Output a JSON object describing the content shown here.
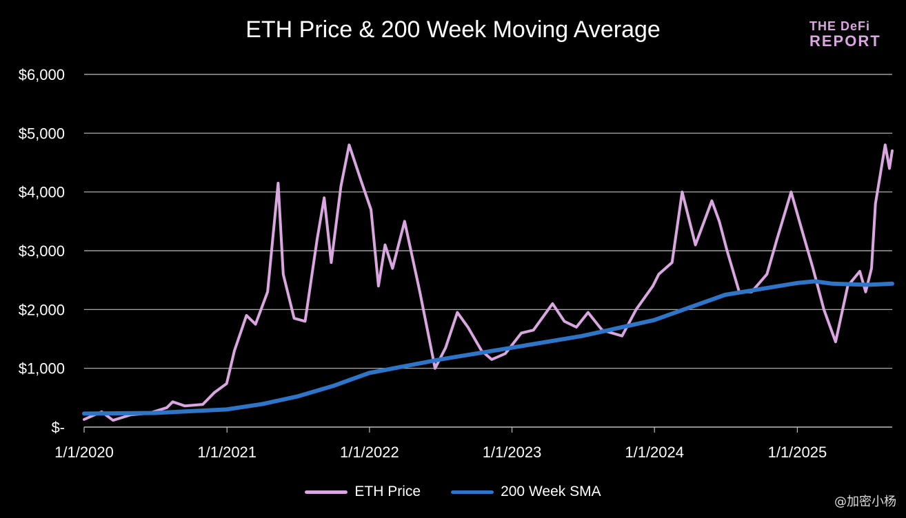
{
  "chart_data": {
    "type": "line",
    "title": "ETH Price & 200 Week Moving Average",
    "x_tick_labels": [
      "1/1/2020",
      "1/1/2021",
      "1/1/2022",
      "1/1/2023",
      "1/1/2024",
      "1/1/2025"
    ],
    "y_tick_labels": [
      "$-",
      "$1,000",
      "$2,000",
      "$3,000",
      "$4,000",
      "$5,000",
      "$6,000"
    ],
    "xlim": [
      "2020-01-01",
      "2025-09-01"
    ],
    "ylim": [
      0,
      6000
    ],
    "grid": "horizontal",
    "legend_position": "bottom",
    "series": [
      {
        "name": "ETH Price",
        "color": "#d9a6e0",
        "points": [
          [
            "2020-01-01",
            130
          ],
          [
            "2020-02-15",
            260
          ],
          [
            "2020-03-15",
            115
          ],
          [
            "2020-04-30",
            210
          ],
          [
            "2020-06-15",
            235
          ],
          [
            "2020-07-31",
            330
          ],
          [
            "2020-08-15",
            430
          ],
          [
            "2020-09-15",
            360
          ],
          [
            "2020-10-31",
            385
          ],
          [
            "2020-11-30",
            590
          ],
          [
            "2020-12-31",
            740
          ],
          [
            "2021-01-20",
            1300
          ],
          [
            "2021-02-20",
            1900
          ],
          [
            "2021-03-15",
            1750
          ],
          [
            "2021-04-15",
            2300
          ],
          [
            "2021-05-12",
            4150
          ],
          [
            "2021-05-25",
            2600
          ],
          [
            "2021-06-22",
            1850
          ],
          [
            "2021-07-20",
            1800
          ],
          [
            "2021-08-20",
            3200
          ],
          [
            "2021-09-07",
            3900
          ],
          [
            "2021-09-25",
            2800
          ],
          [
            "2021-10-20",
            4100
          ],
          [
            "2021-11-10",
            4800
          ],
          [
            "2021-12-10",
            4200
          ],
          [
            "2022-01-05",
            3700
          ],
          [
            "2022-01-24",
            2400
          ],
          [
            "2022-02-10",
            3100
          ],
          [
            "2022-03-01",
            2700
          ],
          [
            "2022-04-01",
            3500
          ],
          [
            "2022-05-10",
            2300
          ],
          [
            "2022-06-18",
            1000
          ],
          [
            "2022-07-15",
            1350
          ],
          [
            "2022-08-14",
            1950
          ],
          [
            "2022-09-10",
            1700
          ],
          [
            "2022-10-15",
            1300
          ],
          [
            "2022-11-10",
            1150
          ],
          [
            "2022-12-15",
            1250
          ],
          [
            "2023-01-25",
            1600
          ],
          [
            "2023-02-25",
            1650
          ],
          [
            "2023-04-15",
            2100
          ],
          [
            "2023-05-15",
            1800
          ],
          [
            "2023-06-15",
            1700
          ],
          [
            "2023-07-15",
            1950
          ],
          [
            "2023-08-20",
            1650
          ],
          [
            "2023-10-10",
            1550
          ],
          [
            "2023-11-15",
            2000
          ],
          [
            "2023-12-28",
            2400
          ],
          [
            "2024-01-12",
            2600
          ],
          [
            "2024-02-15",
            2800
          ],
          [
            "2024-03-12",
            4000
          ],
          [
            "2024-04-15",
            3100
          ],
          [
            "2024-05-27",
            3850
          ],
          [
            "2024-06-15",
            3500
          ],
          [
            "2024-07-05",
            3000
          ],
          [
            "2024-08-05",
            2300
          ],
          [
            "2024-09-06",
            2300
          ],
          [
            "2024-10-15",
            2600
          ],
          [
            "2024-11-10",
            3200
          ],
          [
            "2024-12-16",
            4000
          ],
          [
            "2025-01-15",
            3300
          ],
          [
            "2025-02-10",
            2700
          ],
          [
            "2025-03-10",
            2000
          ],
          [
            "2025-04-09",
            1450
          ],
          [
            "2025-05-10",
            2400
          ],
          [
            "2025-06-10",
            2650
          ],
          [
            "2025-06-25",
            2300
          ],
          [
            "2025-07-10",
            2700
          ],
          [
            "2025-07-20",
            3800
          ],
          [
            "2025-08-14",
            4800
          ],
          [
            "2025-08-25",
            4400
          ],
          [
            "2025-09-01",
            4700
          ]
        ]
      },
      {
        "name": "200 Week SMA",
        "color": "#2e75c8",
        "points": [
          [
            "2020-01-01",
            230
          ],
          [
            "2020-06-30",
            240
          ],
          [
            "2020-12-31",
            300
          ],
          [
            "2021-03-31",
            390
          ],
          [
            "2021-06-30",
            520
          ],
          [
            "2021-09-30",
            700
          ],
          [
            "2021-12-31",
            920
          ],
          [
            "2022-06-30",
            1150
          ],
          [
            "2022-12-31",
            1350
          ],
          [
            "2023-06-30",
            1550
          ],
          [
            "2023-12-31",
            1820
          ],
          [
            "2024-06-30",
            2250
          ],
          [
            "2024-12-31",
            2450
          ],
          [
            "2025-02-15",
            2480
          ],
          [
            "2025-03-31",
            2440
          ],
          [
            "2025-06-30",
            2420
          ],
          [
            "2025-09-01",
            2440
          ]
        ]
      }
    ]
  },
  "logo": {
    "line1": "THE DeFi",
    "line2": "REPORT"
  },
  "watermark": "@加密小杨"
}
